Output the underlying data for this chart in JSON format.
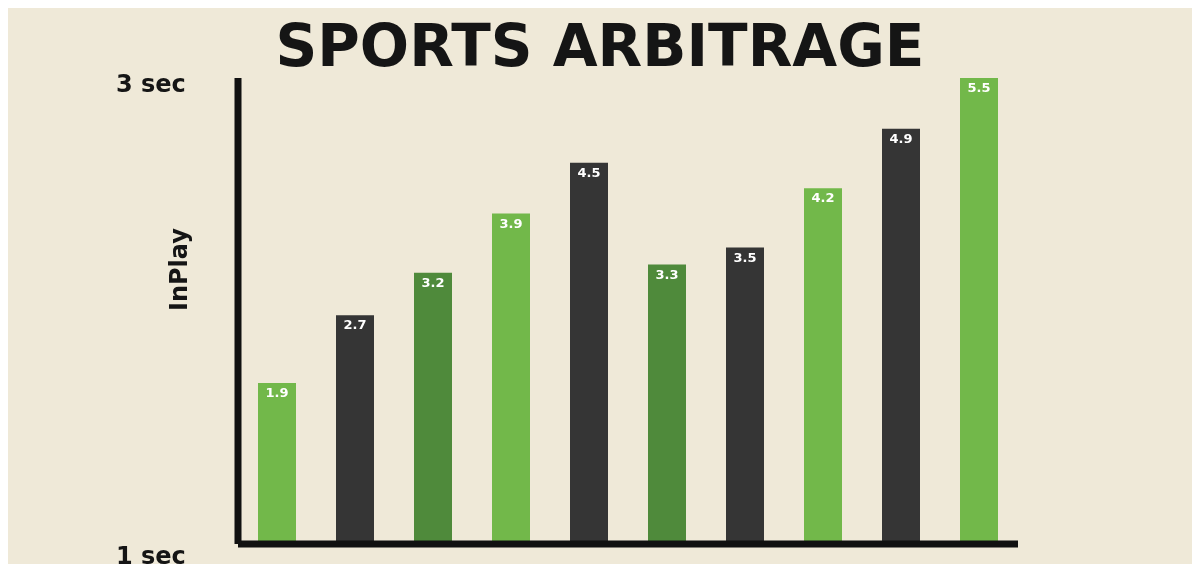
{
  "chart_data": {
    "type": "bar",
    "title": "SPORTS ARBITRAGE",
    "ylabel": "InPlay",
    "categories": [
      null,
      null,
      null,
      null,
      null,
      null,
      null,
      null,
      null,
      null
    ],
    "values": [
      1.9,
      2.7,
      3.2,
      3.9,
      4.5,
      3.3,
      3.5,
      4.2,
      4.9,
      5.5
    ],
    "colors": [
      "#72b84a",
      "#353535",
      "#4f8a3b",
      "#72b84a",
      "#353535",
      "#4f8a3b",
      "#353535",
      "#72b84a",
      "#353535",
      "#72b84a"
    ],
    "data_labels": true,
    "annotations": [
      "3 sec",
      "1 sec"
    ]
  }
}
